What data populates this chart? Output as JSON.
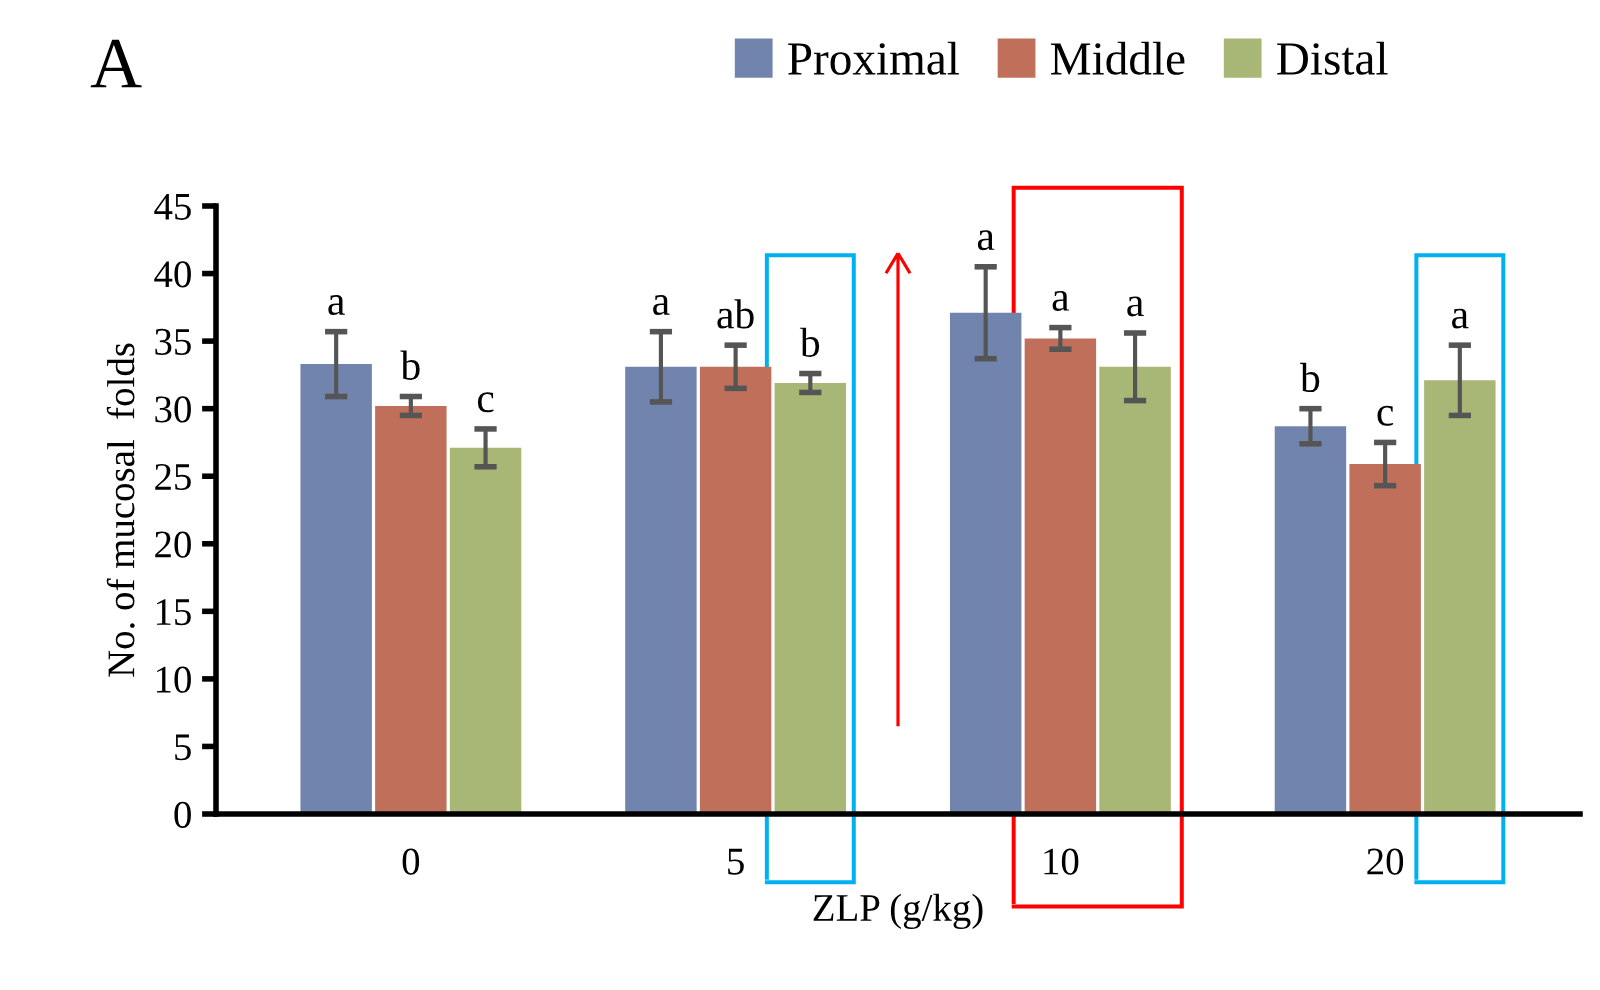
{
  "chart_data": {
    "type": "bar",
    "title": "A",
    "xlabel": "ZLP (g/kg)",
    "ylabel": "No. of mucosal  folds",
    "categories": [
      "0",
      "5",
      "10",
      "20"
    ],
    "series": [
      {
        "name": "Proximal",
        "color": "#7084ae",
        "values": [
          33.3,
          33.1,
          37.1,
          28.7
        ],
        "errors": [
          2.4,
          2.6,
          3.4,
          1.3
        ],
        "value_labels": [
          "a",
          "a",
          "a",
          "b"
        ]
      },
      {
        "name": "Middle",
        "color": "#c0705a",
        "values": [
          30.2,
          33.1,
          35.2,
          25.9
        ],
        "errors": [
          0.7,
          1.6,
          0.8,
          1.6
        ],
        "value_labels": [
          "b",
          "ab",
          "a",
          "c"
        ]
      },
      {
        "name": "Distal",
        "color": "#a9b776",
        "values": [
          27.1,
          31.9,
          33.1,
          32.1
        ],
        "errors": [
          1.4,
          0.7,
          2.5,
          2.6
        ],
        "value_labels": [
          "c",
          "b",
          "a",
          "a"
        ]
      }
    ],
    "ylim": [
      0,
      45
    ],
    "yticks": [
      0,
      5,
      10,
      15,
      20,
      25,
      30,
      35,
      40,
      45
    ],
    "grid": false,
    "legend": "top"
  }
}
